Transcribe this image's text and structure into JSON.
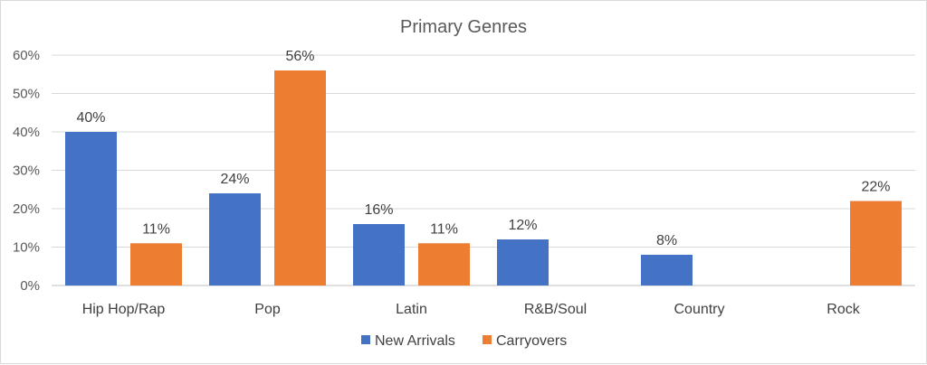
{
  "chart_data": {
    "type": "bar",
    "title": "Primary Genres",
    "categories": [
      "Hip Hop/Rap",
      "Pop",
      "Latin",
      "R&B/Soul",
      "Country",
      "Rock"
    ],
    "series": [
      {
        "name": "New Arrivals",
        "color": "#4472c4",
        "values": [
          40,
          24,
          16,
          12,
          8,
          null
        ]
      },
      {
        "name": "Carryovers",
        "color": "#ed7d31",
        "values": [
          11,
          56,
          11,
          null,
          null,
          22
        ]
      }
    ],
    "yticks": [
      "0%",
      "10%",
      "20%",
      "30%",
      "40%",
      "50%",
      "60%"
    ],
    "ylim": [
      0,
      60
    ],
    "unit": "%",
    "grid": true,
    "legend": "bottom-center",
    "xlabel": "",
    "ylabel": ""
  }
}
